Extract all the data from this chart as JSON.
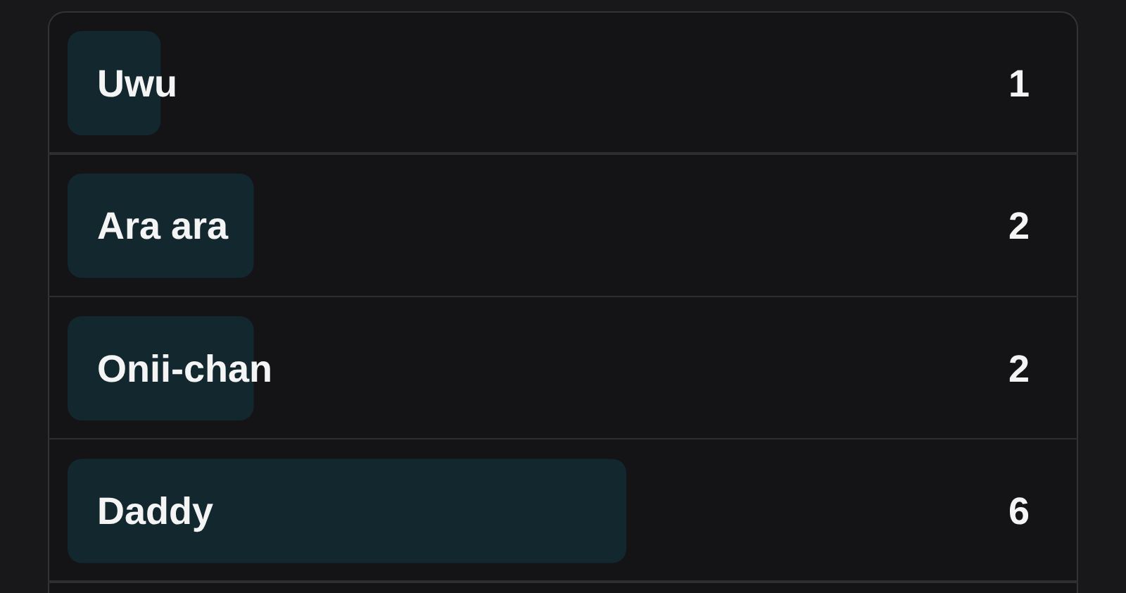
{
  "chart_data": {
    "type": "bar",
    "orientation": "horizontal",
    "categories": [
      "Uwu",
      "Ara ara",
      "Onii-chan",
      "Daddy"
    ],
    "values": [
      1,
      2,
      2,
      6
    ],
    "color": "#13272f",
    "data_labels": true
  }
}
